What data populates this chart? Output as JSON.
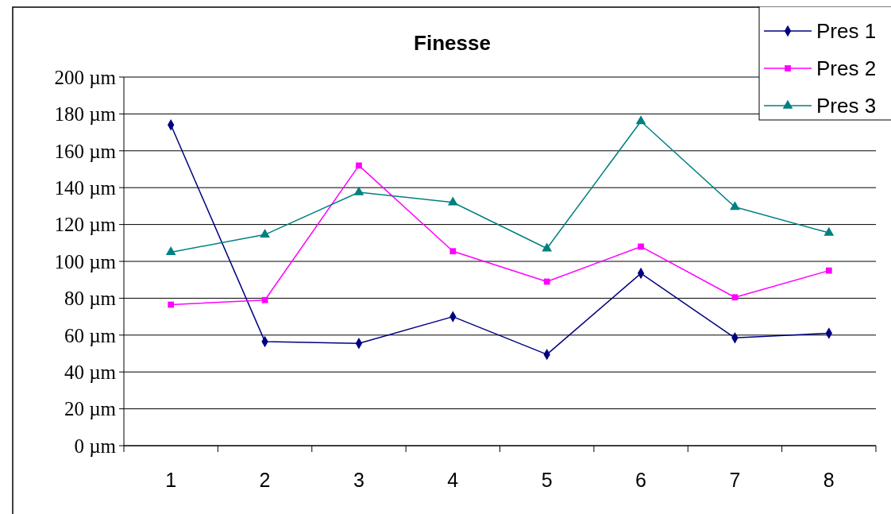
{
  "chart_data": {
    "type": "line",
    "title": "Finesse",
    "categories": [
      "1",
      "2",
      "3",
      "4",
      "5",
      "6",
      "7",
      "8"
    ],
    "series": [
      {
        "name": "Pres 1",
        "color": "#000080",
        "marker": "diamond",
        "values": [
          174,
          56.5,
          55.5,
          70,
          49.5,
          93.5,
          58.5,
          61
        ]
      },
      {
        "name": "Pres 2",
        "color": "#ff00ff",
        "marker": "square",
        "values": [
          76.5,
          79,
          152,
          105.5,
          89,
          108,
          80.5,
          95
        ]
      },
      {
        "name": "Pres 3",
        "color": "#008080",
        "marker": "triangle",
        "values": [
          105,
          114.5,
          137.5,
          132,
          107,
          176,
          129.5,
          115.5
        ]
      }
    ],
    "ylim": [
      0,
      200
    ],
    "yticks": [
      {
        "value": 0,
        "label": "0 µm"
      },
      {
        "value": 20,
        "label": "20 µm"
      },
      {
        "value": 40,
        "label": "40 µm"
      },
      {
        "value": 60,
        "label": "60 µm"
      },
      {
        "value": 80,
        "label": "80 µm"
      },
      {
        "value": 100,
        "label": "100 µm"
      },
      {
        "value": 120,
        "label": "120 µm"
      },
      {
        "value": 140,
        "label": "140 µm"
      },
      {
        "value": 160,
        "label": "160 µm"
      },
      {
        "value": 180,
        "label": "180 µm"
      },
      {
        "value": 200,
        "label": "200 µm"
      }
    ],
    "grid": "y",
    "legend": "top right",
    "line_style": "solid"
  }
}
